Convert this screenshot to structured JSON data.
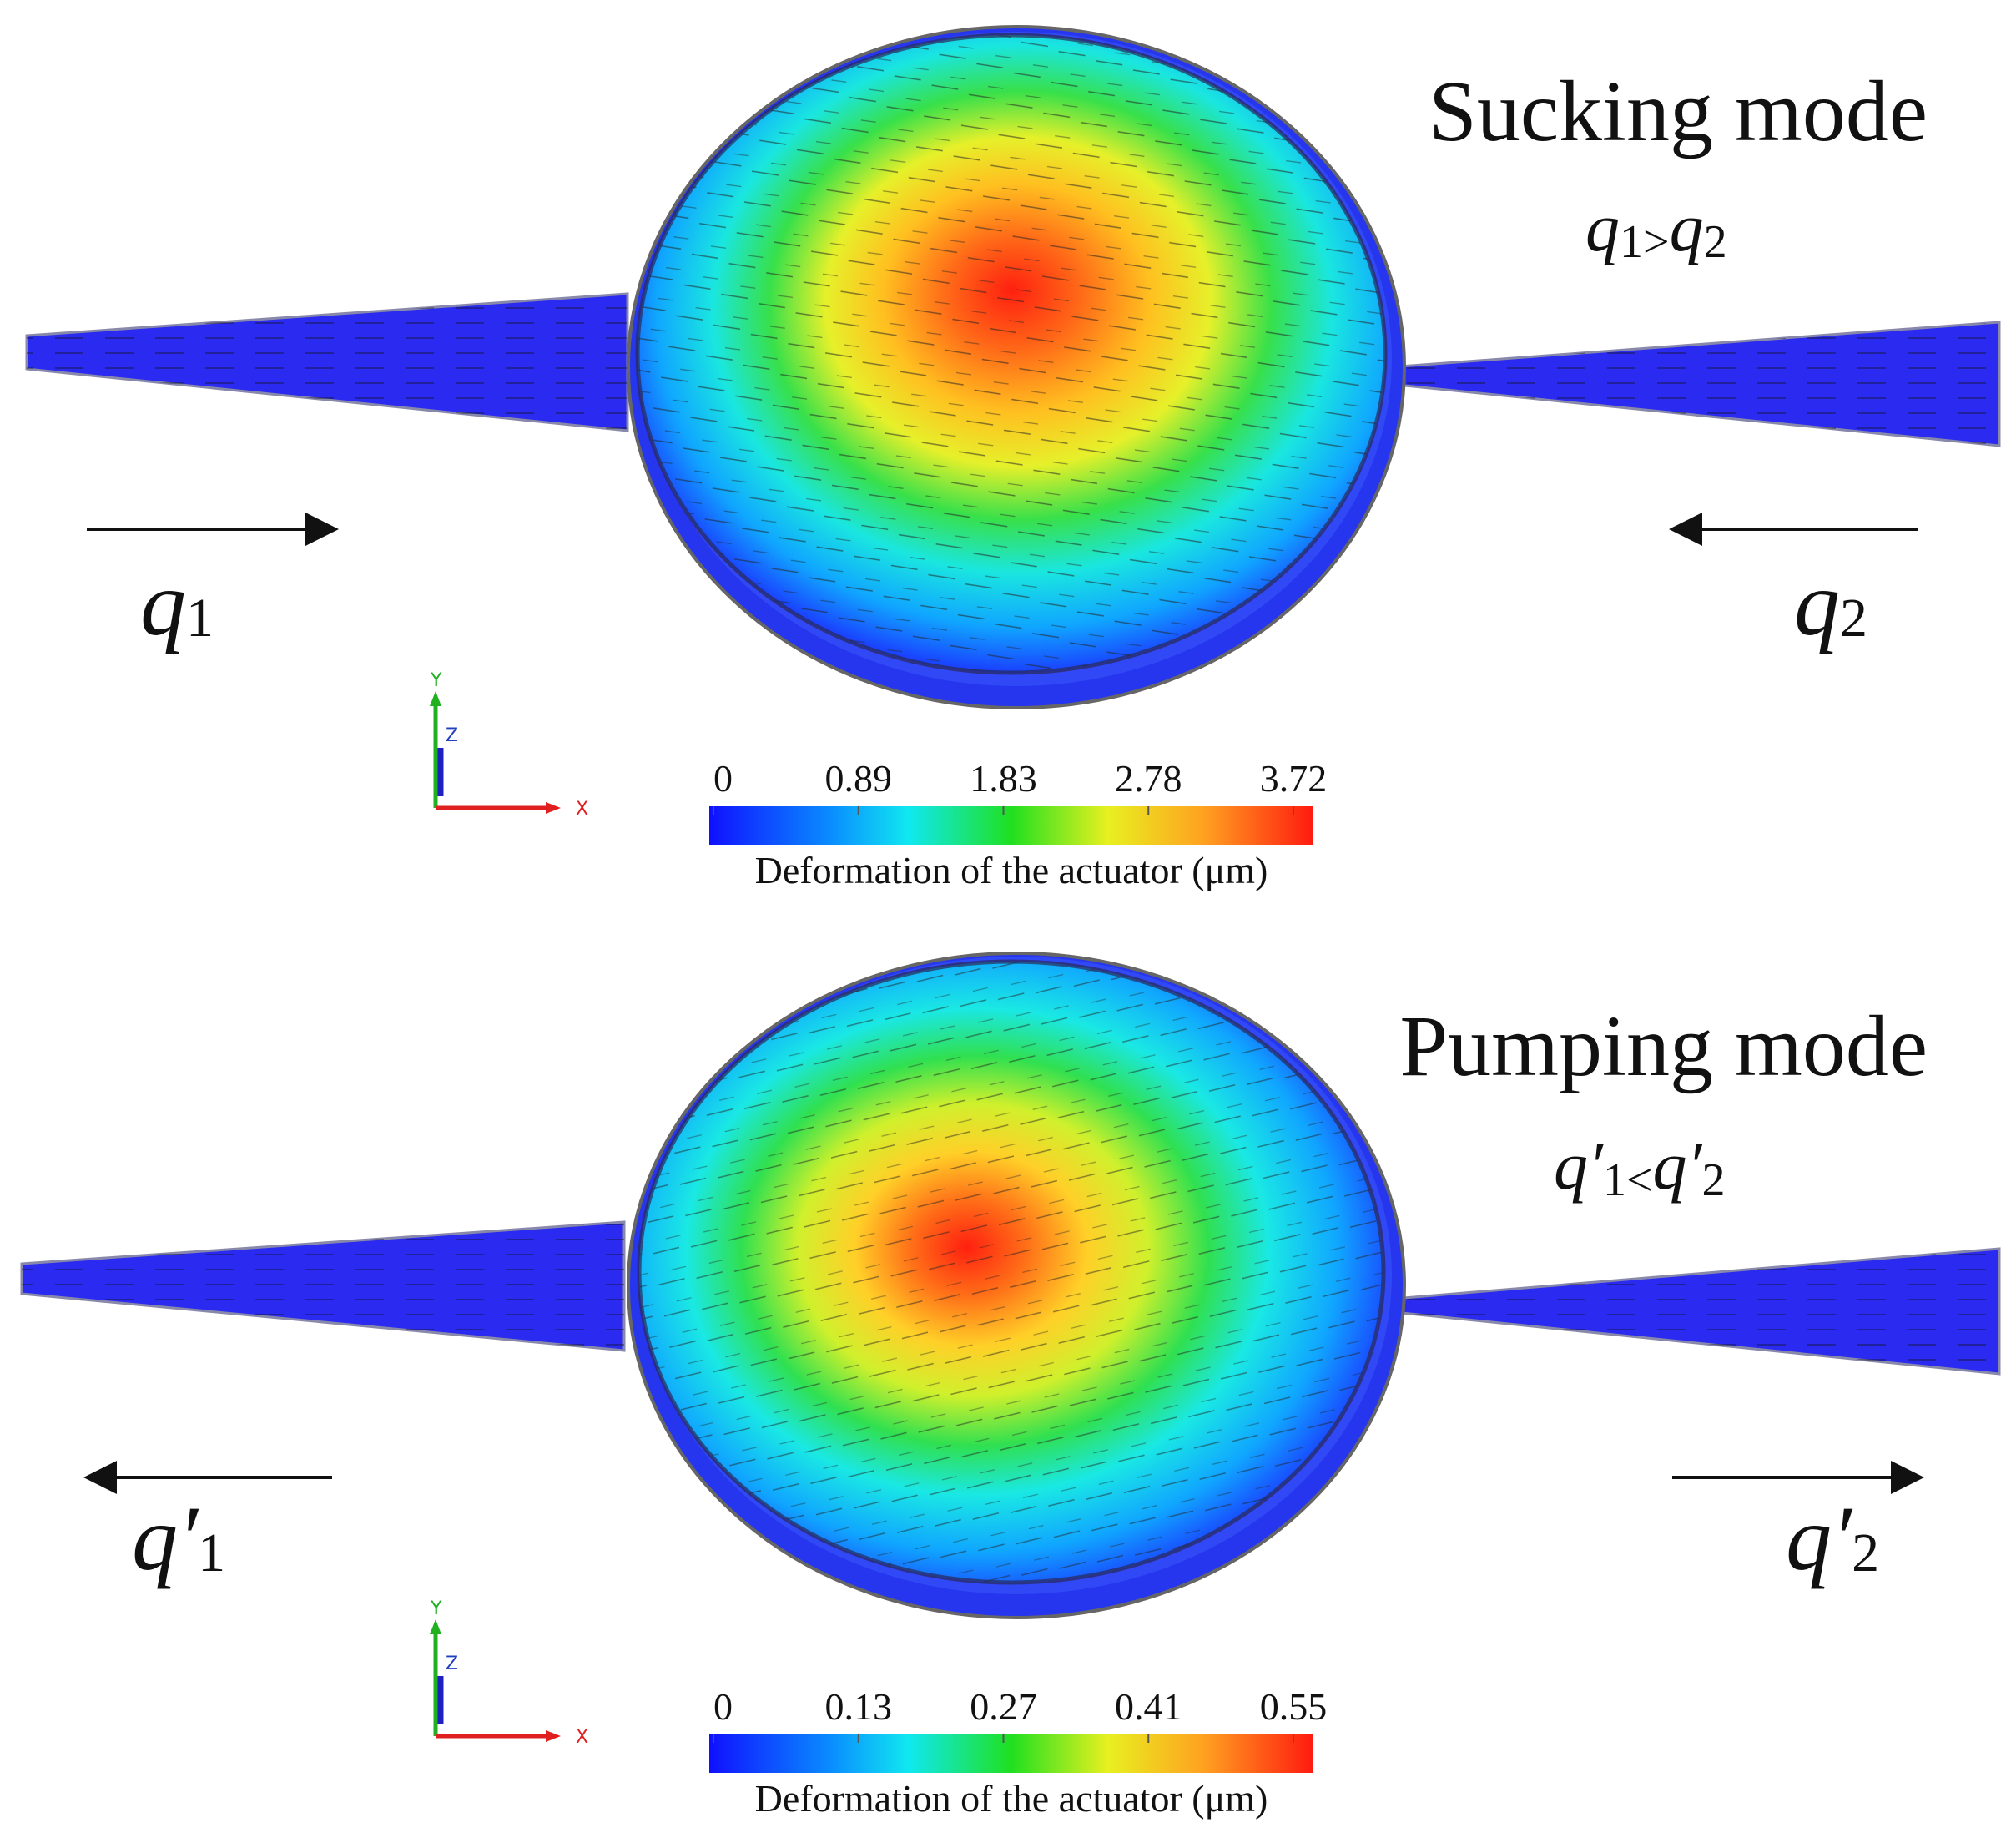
{
  "panels": [
    {
      "id": "sucking",
      "mode_title": "Sucking mode",
      "relation": {
        "left": "q",
        "left_sub": "1",
        "operator": ">",
        "right": "q",
        "right_sub": "2"
      },
      "flow_left": {
        "label": "q",
        "sub": "1",
        "direction": "right"
      },
      "flow_right": {
        "label": "q",
        "sub": "2",
        "direction": "left"
      },
      "colorbar": {
        "ticks": [
          "0",
          "0.89",
          "1.83",
          "2.78",
          "3.72"
        ],
        "label": "Deformation of the actuator (μm)"
      },
      "axes_triad": {
        "y": "Y",
        "z": "Z",
        "x": "X"
      }
    },
    {
      "id": "pumping",
      "mode_title": "Pumping mode",
      "relation": {
        "left": "q′",
        "left_sub": "1",
        "operator": "<",
        "right": "q′",
        "right_sub": "2"
      },
      "flow_left": {
        "label": "q′",
        "sub": "1",
        "direction": "left"
      },
      "flow_right": {
        "label": "q′",
        "sub": "2",
        "direction": "right"
      },
      "colorbar": {
        "ticks": [
          "0",
          "0.13",
          "0.27",
          "0.41",
          "0.55"
        ],
        "label": "Deformation of the actuator (μm)"
      },
      "axes_triad": {
        "y": "Y",
        "z": "Z",
        "x": "X"
      }
    }
  ],
  "colors": {
    "jet_low": "#1a1aff",
    "jet_mid": "#22e000",
    "jet_high": "#ff2000",
    "channel": "#2a2af0"
  }
}
